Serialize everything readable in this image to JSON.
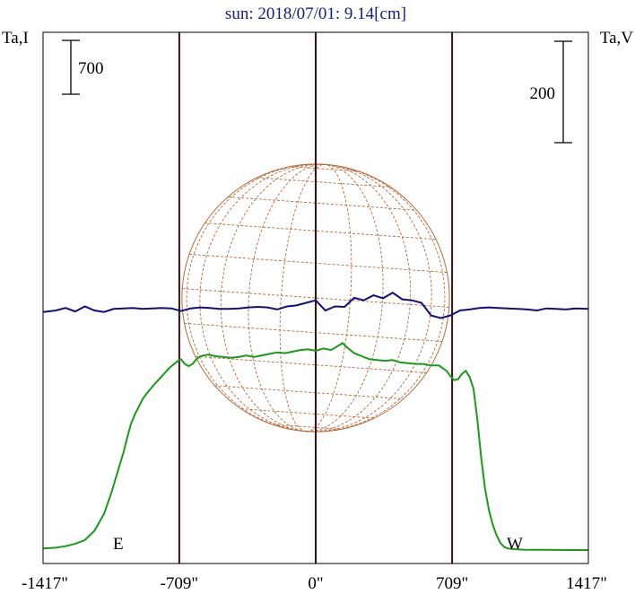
{
  "chart_data": {
    "type": "line",
    "title": "sun: 2018/07/01: 9.14[cm]",
    "ylabel_left": "Ta,I",
    "ylabel_right": "Ta,V",
    "scalebar_left": "700",
    "scalebar_right": "200",
    "limb_labels": {
      "east": "E",
      "west": "W"
    },
    "xlim": [
      -1417,
      1417
    ],
    "x_ticks": [
      {
        "value": -1417,
        "label": "-1417\""
      },
      {
        "value": -709,
        "label": "-709\""
      },
      {
        "value": 0,
        "label": "0\""
      },
      {
        "value": 709,
        "label": "709\""
      },
      {
        "value": 1417,
        "label": "1417\""
      }
    ],
    "markers_x": [
      -709,
      0,
      709
    ],
    "colors": {
      "frame": "#000000",
      "markers": "#3a1010",
      "stokes_i": "#1a9a1a",
      "stokes_v": "#10107a",
      "disk": "#b86a3a",
      "title": "#1a1a7a"
    },
    "grid": false,
    "series": [
      {
        "name": "Ta,I",
        "x": [
          -1417,
          -1350,
          -1300,
          -1250,
          -1200,
          -1150,
          -1100,
          -1060,
          -1030,
          -1000,
          -980,
          -960,
          -940,
          -920,
          -900,
          -880,
          -860,
          -840,
          -800,
          -760,
          -720,
          -700,
          -680,
          -660,
          -640,
          -620,
          -600,
          -560,
          -520,
          -480,
          -440,
          -400,
          -360,
          -320,
          -280,
          -240,
          -200,
          -160,
          -120,
          -80,
          -40,
          0,
          40,
          80,
          120,
          140,
          160,
          200,
          240,
          280,
          320,
          360,
          400,
          440,
          480,
          520,
          560,
          600,
          640,
          680,
          700,
          720,
          740,
          760,
          780,
          800,
          820,
          840,
          860,
          880,
          900,
          920,
          940,
          960,
          980,
          1000,
          1040,
          1080,
          1120,
          1160,
          1200,
          1260,
          1320,
          1417
        ],
        "values": [
          20,
          30,
          50,
          80,
          130,
          250,
          470,
          760,
          1010,
          1260,
          1460,
          1640,
          1760,
          1860,
          1960,
          2030,
          2090,
          2150,
          2260,
          2370,
          2450,
          2480,
          2420,
          2390,
          2420,
          2480,
          2520,
          2540,
          2520,
          2510,
          2500,
          2510,
          2530,
          2510,
          2530,
          2550,
          2570,
          2560,
          2580,
          2600,
          2610,
          2590,
          2620,
          2600,
          2660,
          2690,
          2640,
          2560,
          2520,
          2480,
          2470,
          2460,
          2470,
          2440,
          2430,
          2420,
          2420,
          2400,
          2400,
          2330,
          2260,
          2210,
          2220,
          2290,
          2330,
          2250,
          2100,
          1700,
          1200,
          800,
          520,
          330,
          190,
          90,
          40,
          20,
          10,
          5,
          4,
          3,
          2,
          1,
          0,
          0
        ]
      },
      {
        "name": "Ta,V",
        "x": [
          -1417,
          -1350,
          -1300,
          -1250,
          -1200,
          -1150,
          -1100,
          -1050,
          -1000,
          -950,
          -900,
          -850,
          -800,
          -750,
          -700,
          -650,
          -600,
          -550,
          -500,
          -450,
          -400,
          -350,
          -300,
          -250,
          -200,
          -150,
          -100,
          -50,
          0,
          50,
          100,
          150,
          200,
          250,
          300,
          350,
          400,
          450,
          500,
          550,
          600,
          650,
          700,
          750,
          800,
          850,
          900,
          950,
          1000,
          1050,
          1100,
          1150,
          1200,
          1250,
          1300,
          1350,
          1417
        ],
        "values": [
          -3,
          0,
          5,
          -2,
          8,
          0,
          -3,
          3,
          4,
          5,
          3,
          4,
          5,
          4,
          -1,
          4,
          6,
          5,
          3,
          3,
          4,
          6,
          7,
          6,
          2,
          8,
          10,
          15,
          20,
          0,
          8,
          7,
          25,
          20,
          30,
          24,
          35,
          22,
          20,
          15,
          -10,
          -15,
          -10,
          0,
          2,
          5,
          6,
          5,
          4,
          3,
          2,
          0,
          4,
          3,
          2,
          4,
          3
        ]
      }
    ]
  }
}
